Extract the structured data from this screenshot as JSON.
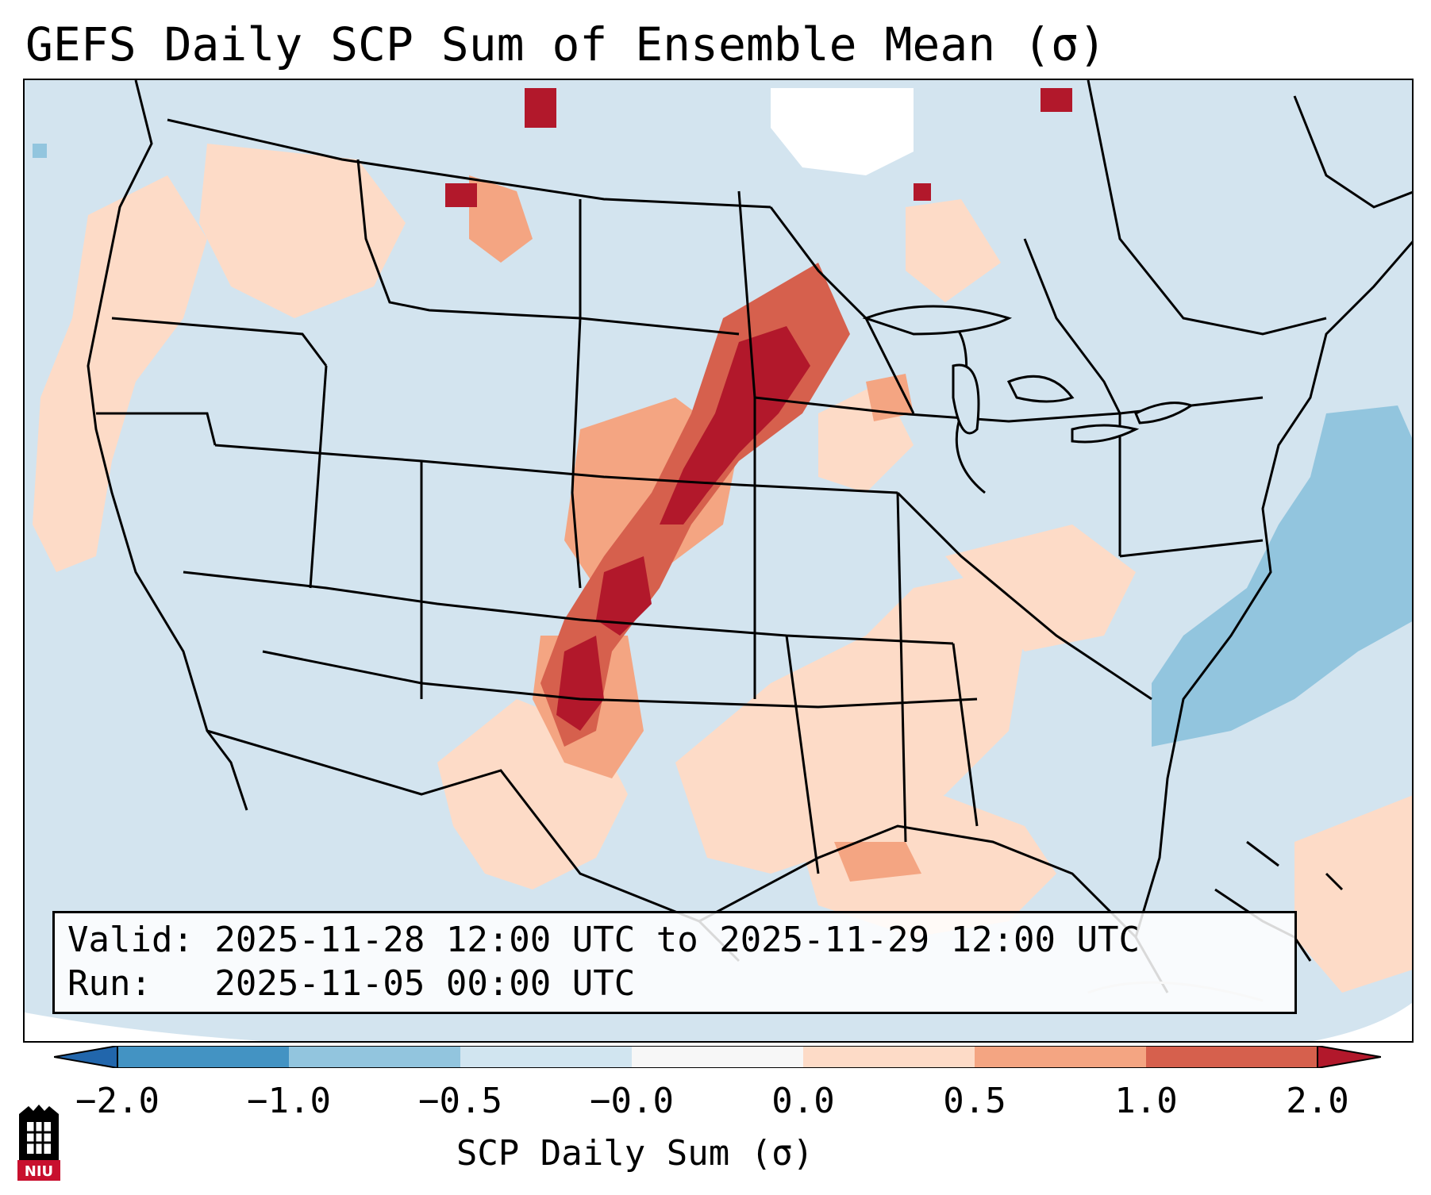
{
  "title": "GEFS Daily SCP Sum of Ensemble Mean (σ)",
  "info": {
    "valid_line": "Valid: 2025-11-28 12:00 UTC to 2025-11-29 12:00 UTC",
    "run_line": "Run:   2025-11-05 00:00 UTC"
  },
  "colorbar": {
    "label": "SCP Daily Sum (σ)",
    "ticks": [
      "−2.0",
      "−1.0",
      "−0.5",
      "−0.0",
      "0.0",
      "0.5",
      "1.0",
      "2.0"
    ],
    "colors": [
      "#2166ac",
      "#4393c3",
      "#92c5de",
      "#d1e5f0",
      "#f7f7f7",
      "#fddbc7",
      "#f4a582",
      "#d6604d",
      "#b2182b"
    ]
  },
  "logo": {
    "text": "NIU",
    "icon": "niu-logo-icon"
  }
}
